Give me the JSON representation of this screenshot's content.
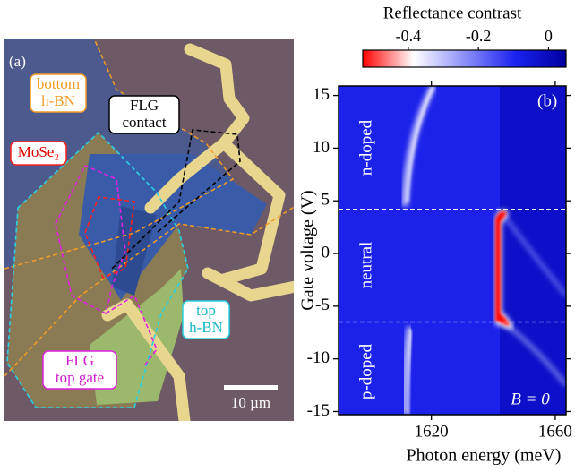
{
  "panel_a": {
    "label": "(a)",
    "labels": [
      {
        "lines": [
          "bottom",
          "h-BN"
        ]
      },
      {
        "lines": [
          "FLG",
          "contact"
        ]
      },
      {
        "lines": [
          "MoSe₂"
        ]
      },
      {
        "lines": [
          "top",
          "h-BN"
        ]
      },
      {
        "lines": [
          "FLG",
          "top gate"
        ]
      }
    ],
    "scale_bar": "10 µm"
  },
  "chart_data": {
    "type": "heatmap",
    "panel_label": "(b)",
    "xlabel": "Photon energy (meV)",
    "ylabel": "Gate voltage (V)",
    "xlim": [
      1590,
      1663.5
    ],
    "xticks": [
      1620,
      1660
    ],
    "ylim": [
      -15.3,
      15.9
    ],
    "yticks": [
      -15,
      -10,
      -5,
      0,
      5,
      10,
      15
    ],
    "hlines": [
      4.2,
      -6.5
    ],
    "annotations": [
      "n-doped",
      "neutral",
      "p-doped",
      "B = 0"
    ],
    "colorbar": {
      "title": "Reflectance contrast",
      "lim": [
        -0.53,
        0.05
      ],
      "ticks": [
        -0.4,
        -0.2,
        0
      ],
      "colors": [
        "#ff0000",
        "#ffffff",
        "#1a22f0",
        "#0000a0"
      ]
    }
  }
}
